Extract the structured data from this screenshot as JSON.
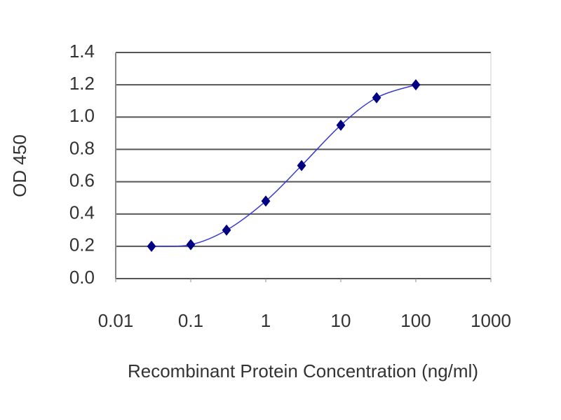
{
  "chart_data": {
    "type": "line",
    "x_label": "Recombinant Protein Concentration (ng/ml)",
    "y_label": "OD 450",
    "x": [
      0.03,
      0.1,
      0.3,
      1,
      3,
      10,
      30,
      100
    ],
    "series": [
      {
        "color": "#000080",
        "values": [
          0.2,
          0.21,
          0.3,
          0.48,
          0.7,
          0.95,
          1.12,
          1.2
        ]
      }
    ],
    "xlim": [
      0.01,
      1000
    ],
    "xticks": [
      0.01,
      0.1,
      1,
      10,
      100,
      1000
    ],
    "xscale": "log",
    "ylim": [
      0,
      1.4
    ],
    "yticks": [
      {
        "value": 0,
        "label": "0.0"
      },
      0.2,
      0.4,
      0.6,
      0.8,
      {
        "value": 1,
        "label": "1.0"
      },
      1.2,
      1.4
    ],
    "grid": true
  }
}
